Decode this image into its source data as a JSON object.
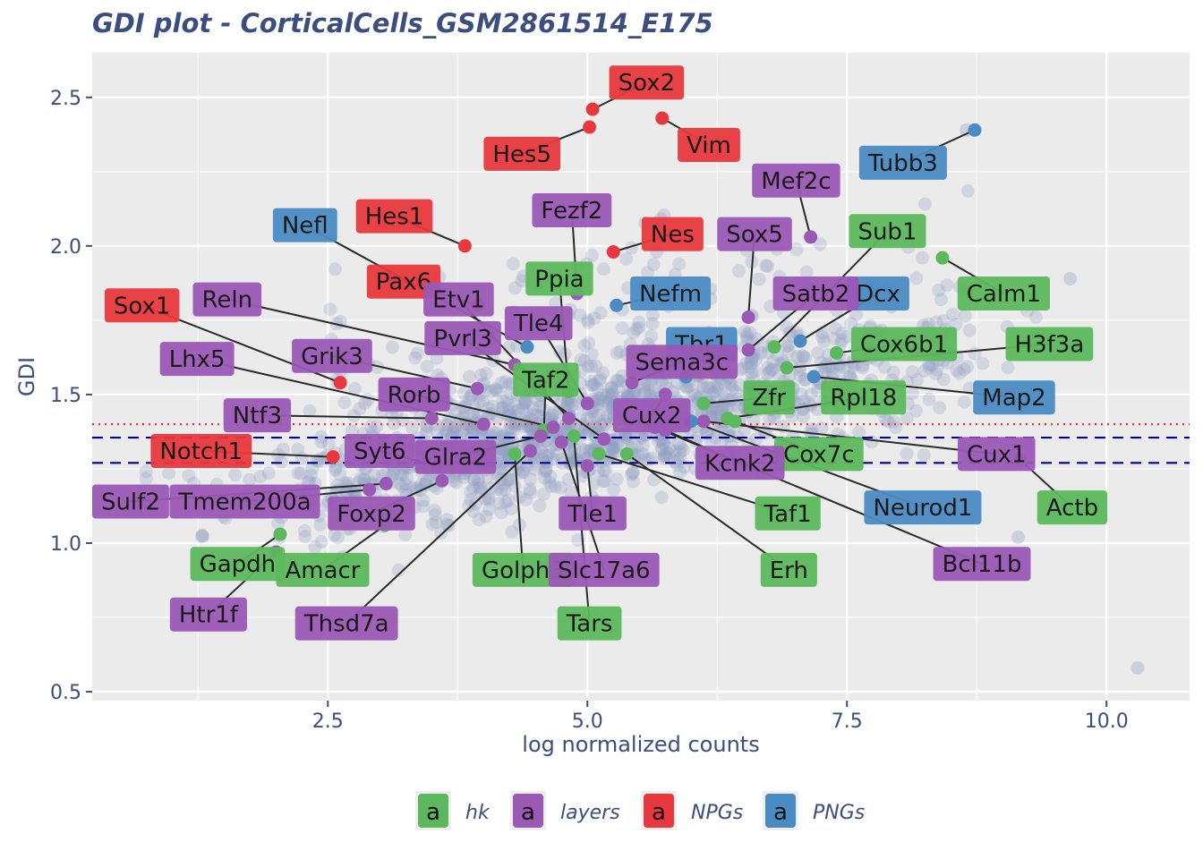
{
  "colors": {
    "panel": "#ebebeb",
    "grid": "#ffffff",
    "background_points": "#8f9ec2",
    "hk": "#5cb85c",
    "layers": "#9b59b6",
    "NPGs": "#e8383d",
    "PNGs": "#4a8bc4",
    "dotted_line": "#e8383d",
    "dashed_line": "#00008b",
    "text": "#3b4e7e"
  },
  "chart_data": {
    "type": "scatter",
    "title": "GDI plot - CorticalCells_GSM2861514_E175",
    "xlabel": "log normalized counts",
    "ylabel": "GDI",
    "xlim": [
      0.23,
      10.8
    ],
    "ylim": [
      0.47,
      2.65
    ],
    "xticks": [
      2.5,
      5.0,
      7.5,
      10.0
    ],
    "xtick_labels": [
      "2.5",
      "5.0",
      "7.5",
      "10.0"
    ],
    "yticks": [
      0.5,
      1.0,
      1.5,
      2.0,
      2.5
    ],
    "ytick_labels": [
      "0.5",
      "1.0",
      "1.5",
      "2.0",
      "2.5"
    ],
    "grid": true,
    "hlines": [
      {
        "style": "dotted",
        "y": 1.4
      },
      {
        "style": "dashed",
        "y": 1.355
      },
      {
        "style": "dashed",
        "y": 1.27
      }
    ],
    "legend": {
      "position": "bottom",
      "key_text": "a",
      "entries": [
        "hk",
        "layers",
        "NPGs",
        "PNGs"
      ]
    },
    "genes": [
      {
        "name": "Sox2",
        "group": "NPGs",
        "x": 5.05,
        "y": 2.46,
        "lx": 5.57,
        "ly": 2.55
      },
      {
        "name": "Vim",
        "group": "NPGs",
        "x": 5.72,
        "y": 2.43,
        "lx": 6.17,
        "ly": 2.34
      },
      {
        "name": "Hes5",
        "group": "NPGs",
        "x": 5.02,
        "y": 2.4,
        "lx": 4.37,
        "ly": 2.31
      },
      {
        "name": "Hes1",
        "group": "NPGs",
        "x": 3.82,
        "y": 2.0,
        "lx": 3.14,
        "ly": 2.1
      },
      {
        "name": "Nes",
        "group": "NPGs",
        "x": 5.25,
        "y": 1.98,
        "lx": 5.82,
        "ly": 2.04
      },
      {
        "name": "Pax6",
        "group": "NPGs",
        "x": 3.94,
        "y": 1.8,
        "lx": 3.23,
        "ly": 1.88
      },
      {
        "name": "Sox1",
        "group": "NPGs",
        "x": 2.62,
        "y": 1.54,
        "lx": 0.71,
        "ly": 1.8
      },
      {
        "name": "Notch1",
        "group": "NPGs",
        "x": 2.55,
        "y": 1.29,
        "lx": 1.28,
        "ly": 1.31
      },
      {
        "name": "Nefl",
        "group": "PNGs",
        "x": 4.42,
        "y": 1.66,
        "lx": 2.28,
        "ly": 2.07
      },
      {
        "name": "Tubb3",
        "group": "PNGs",
        "x": 8.73,
        "y": 2.39,
        "lx": 8.04,
        "ly": 2.28
      },
      {
        "name": "Nefm",
        "group": "PNGs",
        "x": 5.28,
        "y": 1.8,
        "lx": 5.8,
        "ly": 1.84
      },
      {
        "name": "Dcx",
        "group": "PNGs",
        "x": 7.05,
        "y": 1.68,
        "lx": 7.8,
        "ly": 1.84
      },
      {
        "name": "Tbr1",
        "group": "PNGs",
        "x": 5.95,
        "y": 1.56,
        "lx": 6.1,
        "ly": 1.67
      },
      {
        "name": "Map2",
        "group": "PNGs",
        "x": 7.18,
        "y": 1.56,
        "lx": 9.11,
        "ly": 1.49
      },
      {
        "name": "Neurod1",
        "group": "PNGs",
        "x": 6.0,
        "y": 1.41,
        "lx": 8.23,
        "ly": 1.12
      },
      {
        "name": "Sub1",
        "group": "hk",
        "x": 6.8,
        "y": 1.66,
        "lx": 7.89,
        "ly": 2.05
      },
      {
        "name": "Calm1",
        "group": "hk",
        "x": 8.42,
        "y": 1.96,
        "lx": 9.01,
        "ly": 1.84
      },
      {
        "name": "Cox6b1",
        "group": "hk",
        "x": 7.4,
        "y": 1.64,
        "lx": 8.05,
        "ly": 1.67
      },
      {
        "name": "H3f3a",
        "group": "hk",
        "x": 6.92,
        "y": 1.59,
        "lx": 9.45,
        "ly": 1.67
      },
      {
        "name": "Rpl18",
        "group": "hk",
        "x": 6.35,
        "y": 1.42,
        "lx": 7.66,
        "ly": 1.49
      },
      {
        "name": "Zfr",
        "group": "hk",
        "x": 6.12,
        "y": 1.47,
        "lx": 6.75,
        "ly": 1.49
      },
      {
        "name": "Cox7c",
        "group": "hk",
        "x": 6.42,
        "y": 1.41,
        "lx": 7.23,
        "ly": 1.3
      },
      {
        "name": "Actb",
        "group": "hk",
        "x": 9.17,
        "y": 1.28,
        "lx": 9.67,
        "ly": 1.12
      },
      {
        "name": "Taf1",
        "group": "hk",
        "x": 5.11,
        "y": 1.3,
        "lx": 6.93,
        "ly": 1.1
      },
      {
        "name": "Erh",
        "group": "hk",
        "x": 5.38,
        "y": 1.3,
        "lx": 6.94,
        "ly": 0.91
      },
      {
        "name": "Tars",
        "group": "hk",
        "x": 4.87,
        "y": 1.36,
        "lx": 5.02,
        "ly": 0.73
      },
      {
        "name": "Golph3",
        "group": "hk",
        "x": 4.3,
        "y": 1.3,
        "lx": 4.38,
        "ly": 0.91
      },
      {
        "name": "Amacr",
        "group": "hk",
        "x": 3.05,
        "y": 1.06,
        "lx": 2.45,
        "ly": 0.91
      },
      {
        "name": "Gapdh",
        "group": "hk",
        "x": 2.04,
        "y": 1.03,
        "lx": 1.63,
        "ly": 0.93
      },
      {
        "name": "Ppia",
        "group": "hk",
        "x": 4.82,
        "y": 1.51,
        "lx": 4.73,
        "ly": 1.89
      },
      {
        "name": "Taf2",
        "group": "hk",
        "x": 4.58,
        "y": 1.38,
        "lx": 4.6,
        "ly": 1.55
      },
      {
        "name": "Mef2c",
        "group": "layers",
        "x": 7.15,
        "y": 2.03,
        "lx": 7.01,
        "ly": 2.22
      },
      {
        "name": "Fezf2",
        "group": "layers",
        "x": 4.9,
        "y": 1.84,
        "lx": 4.85,
        "ly": 2.12
      },
      {
        "name": "Sox5",
        "group": "layers",
        "x": 6.55,
        "y": 1.76,
        "lx": 6.61,
        "ly": 2.04
      },
      {
        "name": "Satb2",
        "group": "layers",
        "x": 6.55,
        "y": 1.65,
        "lx": 7.2,
        "ly": 1.84
      },
      {
        "name": "Tle4",
        "group": "layers",
        "x": 5.0,
        "y": 1.47,
        "lx": 4.53,
        "ly": 1.74
      },
      {
        "name": "Sema3c",
        "group": "layers",
        "x": 5.43,
        "y": 1.54,
        "lx": 5.91,
        "ly": 1.61
      },
      {
        "name": "Cux2",
        "group": "layers",
        "x": 5.75,
        "y": 1.5,
        "lx": 5.62,
        "ly": 1.43
      },
      {
        "name": "Cux1",
        "group": "layers",
        "x": 6.12,
        "y": 1.41,
        "lx": 8.94,
        "ly": 1.3
      },
      {
        "name": "Kcnk2",
        "group": "layers",
        "x": 5.75,
        "y": 1.38,
        "lx": 6.47,
        "ly": 1.27
      },
      {
        "name": "Bcl11b",
        "group": "layers",
        "x": 5.65,
        "y": 1.39,
        "lx": 8.8,
        "ly": 0.93
      },
      {
        "name": "Slc17a6",
        "group": "layers",
        "x": 4.75,
        "y": 1.34,
        "lx": 5.16,
        "ly": 0.91
      },
      {
        "name": "Tle1",
        "group": "layers",
        "x": 5.0,
        "y": 1.26,
        "lx": 5.05,
        "ly": 1.1
      },
      {
        "name": "Reln",
        "group": "layers",
        "x": 4.3,
        "y": 1.6,
        "lx": 1.53,
        "ly": 1.82
      },
      {
        "name": "Etv1",
        "group": "layers",
        "x": 4.82,
        "y": 1.42,
        "lx": 3.76,
        "ly": 1.82
      },
      {
        "name": "Pvrl3",
        "group": "layers",
        "x": 5.16,
        "y": 1.35,
        "lx": 3.8,
        "ly": 1.69
      },
      {
        "name": "Grik3",
        "group": "layers",
        "x": 3.94,
        "y": 1.52,
        "lx": 2.54,
        "ly": 1.63
      },
      {
        "name": "Lhx5",
        "group": "layers",
        "x": 4.0,
        "y": 1.4,
        "lx": 1.24,
        "ly": 1.62
      },
      {
        "name": "Rorb",
        "group": "layers",
        "x": 4.67,
        "y": 1.39,
        "lx": 3.33,
        "ly": 1.5
      },
      {
        "name": "Ntf3",
        "group": "layers",
        "x": 3.5,
        "y": 1.42,
        "lx": 1.82,
        "ly": 1.43
      },
      {
        "name": "Glra2",
        "group": "layers",
        "x": 4.55,
        "y": 1.36,
        "lx": 3.73,
        "ly": 1.29
      },
      {
        "name": "Syt6",
        "group": "layers",
        "x": 3.55,
        "y": 1.26,
        "lx": 3.0,
        "ly": 1.31
      },
      {
        "name": "Sulf2",
        "group": "layers",
        "x": 3.06,
        "y": 1.2,
        "lx": 0.6,
        "ly": 1.14
      },
      {
        "name": "Tmem200a",
        "group": "layers",
        "x": 2.9,
        "y": 1.18,
        "lx": 1.7,
        "ly": 1.14
      },
      {
        "name": "Foxp2",
        "group": "layers",
        "x": 3.6,
        "y": 1.21,
        "lx": 2.92,
        "ly": 1.1
      },
      {
        "name": "Htr1f",
        "group": "layers",
        "x": 2.0,
        "y": 0.97,
        "lx": 1.35,
        "ly": 0.76
      },
      {
        "name": "Thsd7a",
        "group": "layers",
        "x": 4.45,
        "y": 1.31,
        "lx": 2.68,
        "ly": 0.73
      }
    ]
  }
}
